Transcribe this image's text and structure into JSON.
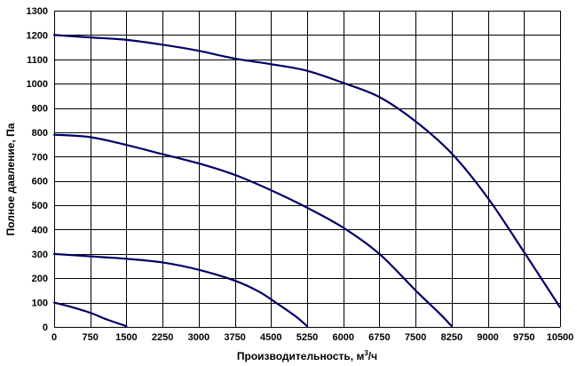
{
  "chart_data": {
    "type": "line",
    "title": "",
    "xlabel_main": "Производительность,  м",
    "xlabel_sup": "3",
    "xlabel_tail": "/ч",
    "ylabel": "Полное  давление, Па",
    "xlim": [
      0,
      10500
    ],
    "ylim": [
      0,
      1300
    ],
    "x_ticks": [
      "0",
      "750",
      "1500",
      "2250",
      "3000",
      "3750",
      "4500",
      "5250",
      "6000",
      "6750",
      "7500",
      "8250",
      "9000",
      "9750",
      "10500"
    ],
    "y_ticks": [
      "0",
      "100",
      "200",
      "300",
      "400",
      "500",
      "600",
      "700",
      "800",
      "900",
      "1000",
      "1100",
      "1200",
      "1300"
    ],
    "grid": true,
    "line_color": "#000066",
    "series": [
      {
        "name": "curve-1",
        "points": [
          [
            0,
            100
          ],
          [
            300,
            85
          ],
          [
            750,
            58
          ],
          [
            1100,
            30
          ],
          [
            1500,
            3
          ]
        ]
      },
      {
        "name": "curve-2",
        "points": [
          [
            0,
            300
          ],
          [
            750,
            290
          ],
          [
            1500,
            280
          ],
          [
            2250,
            265
          ],
          [
            3000,
            235
          ],
          [
            3750,
            190
          ],
          [
            4250,
            145
          ],
          [
            4600,
            100
          ],
          [
            5000,
            45
          ],
          [
            5250,
            3
          ]
        ]
      },
      {
        "name": "curve-3",
        "points": [
          [
            0,
            790
          ],
          [
            750,
            780
          ],
          [
            1500,
            748
          ],
          [
            2250,
            710
          ],
          [
            3000,
            672
          ],
          [
            3750,
            625
          ],
          [
            4500,
            562
          ],
          [
            5250,
            490
          ],
          [
            6000,
            408
          ],
          [
            6750,
            300
          ],
          [
            7500,
            150
          ],
          [
            8000,
            55
          ],
          [
            8250,
            3
          ]
        ]
      },
      {
        "name": "curve-4",
        "points": [
          [
            0,
            1200
          ],
          [
            750,
            1190
          ],
          [
            1500,
            1180
          ],
          [
            2250,
            1160
          ],
          [
            3000,
            1135
          ],
          [
            3750,
            1103
          ],
          [
            4500,
            1080
          ],
          [
            5250,
            1053
          ],
          [
            6000,
            1003
          ],
          [
            6750,
            945
          ],
          [
            7500,
            845
          ],
          [
            8250,
            713
          ],
          [
            9000,
            530
          ],
          [
            9750,
            308
          ],
          [
            10500,
            80
          ]
        ]
      }
    ]
  }
}
